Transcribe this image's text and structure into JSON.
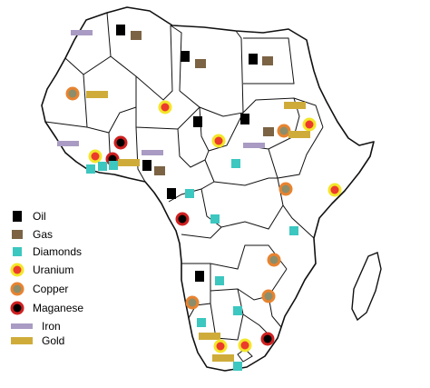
{
  "colors": {
    "oil": "#000000",
    "gas": "#7b6344",
    "diamonds": "#3cc7c0",
    "uranium_outer": "#f3e62a",
    "uranium_inner": "#ec3b2c",
    "copper_outer": "#e8832f",
    "copper_inner": "#8c8d6a",
    "maganese_outer": "#cf2020",
    "maganese_inner": "#000000",
    "iron": "#a99bc3",
    "gold": "#cfac3a",
    "land": "#ffffff",
    "border": "#111111"
  },
  "legend": [
    {
      "key": "oil",
      "label": "Oil",
      "icon": "black-square"
    },
    {
      "key": "gas",
      "label": "Gas",
      "icon": "brown-square"
    },
    {
      "key": "diamonds",
      "label": "Diamonds",
      "icon": "cyan-square"
    },
    {
      "key": "uranium",
      "label": "Uranium",
      "icon": "yellow-red-circle"
    },
    {
      "key": "copper",
      "label": "Copper",
      "icon": "orange-grey-circle"
    },
    {
      "key": "maganese",
      "label": "Maganese",
      "icon": "red-black-circle"
    },
    {
      "key": "iron",
      "label": "Iron",
      "icon": "lavender-bar"
    },
    {
      "key": "gold",
      "label": "Gold",
      "icon": "gold-bar"
    }
  ]
}
